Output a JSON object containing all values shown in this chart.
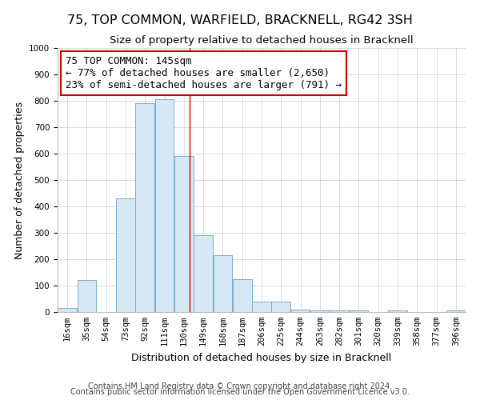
{
  "title": "75, TOP COMMON, WARFIELD, BRACKNELL, RG42 3SH",
  "subtitle": "Size of property relative to detached houses in Bracknell",
  "xlabel": "Distribution of detached houses by size in Bracknell",
  "ylabel": "Number of detached properties",
  "bar_color": "#d6e8f5",
  "bar_edge_color": "#7aaec8",
  "bin_labels": [
    "16sqm",
    "35sqm",
    "54sqm",
    "73sqm",
    "92sqm",
    "111sqm",
    "130sqm",
    "149sqm",
    "168sqm",
    "187sqm",
    "206sqm",
    "225sqm",
    "244sqm",
    "263sqm",
    "282sqm",
    "301sqm",
    "320sqm",
    "339sqm",
    "358sqm",
    "377sqm",
    "396sqm"
  ],
  "bar_heights": [
    15,
    120,
    0,
    430,
    790,
    805,
    590,
    290,
    215,
    125,
    40,
    40,
    10,
    5,
    5,
    5,
    0,
    5,
    0,
    0,
    5
  ],
  "bin_edges": [
    16,
    35,
    54,
    73,
    92,
    111,
    130,
    149,
    168,
    187,
    206,
    225,
    244,
    263,
    282,
    301,
    320,
    339,
    358,
    377,
    396
  ],
  "property_size": 145,
  "property_line_color": "#cc0000",
  "annotation_line1": "75 TOP COMMON: 145sqm",
  "annotation_line2": "← 77% of detached houses are smaller (2,650)",
  "annotation_line3": "23% of semi-detached houses are larger (791) →",
  "annotation_box_color": "#ffffff",
  "annotation_box_edge_color": "#cc0000",
  "ylim": [
    0,
    1000
  ],
  "yticks": [
    0,
    100,
    200,
    300,
    400,
    500,
    600,
    700,
    800,
    900,
    1000
  ],
  "footer_line1": "Contains HM Land Registry data © Crown copyright and database right 2024.",
  "footer_line2": "Contains public sector information licensed under the Open Government Licence v3.0.",
  "grid_color": "#cccccc",
  "background_color": "#ffffff",
  "title_fontsize": 11.5,
  "subtitle_fontsize": 9.5,
  "xlabel_fontsize": 9,
  "ylabel_fontsize": 9,
  "tick_fontsize": 7.5,
  "annotation_fontsize": 9,
  "footer_fontsize": 7
}
